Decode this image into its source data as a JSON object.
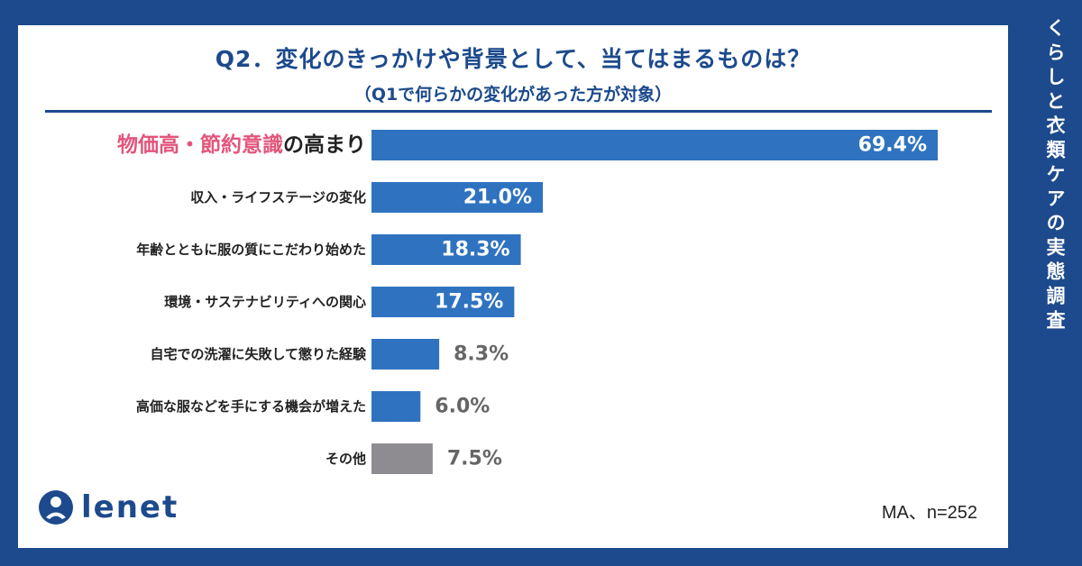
{
  "header": {
    "title": "Q2．変化のきっかけや背景として、当てはまるものは？",
    "subtitle": "（Q1で何らかの変化があった方が対象）"
  },
  "side_title": "くらしと衣類ケアの実態調査",
  "footer": {
    "logo_text": "lenet",
    "note": "MA、n=252"
  },
  "colors": {
    "bar": "#2f73c0",
    "bar_other": "#8e8b91",
    "highlight": "#e2557b",
    "label": "#222222",
    "brand": "#1c4a8c"
  },
  "chart_data": {
    "type": "bar",
    "orientation": "horizontal",
    "title": "Q2．変化のきっかけや背景として、当てはまるものは？",
    "subtitle": "（Q1で何らかの変化があった方が対象）",
    "categories": [
      "物価高・節約意識の高まり",
      "収入・ライフステージの変化",
      "年齢とともに服の質にこだわり始めた",
      "環境・サステナビリティへの関心",
      "自宅での洗濯に失敗して懲りた経験",
      "高価な服などを手にする機会が増えた",
      "その他"
    ],
    "first_label_parts": [
      "物価高・節約意識",
      "の高まり"
    ],
    "values": [
      69.4,
      21.0,
      18.3,
      17.5,
      8.3,
      6.0,
      7.5
    ],
    "value_labels": [
      "69.4%",
      "21.0%",
      "18.3%",
      "17.5%",
      "8.3%",
      "6.0%",
      "7.5%"
    ],
    "unit": "%",
    "xlim": [
      0,
      100
    ],
    "grid": false,
    "legend": "none"
  }
}
